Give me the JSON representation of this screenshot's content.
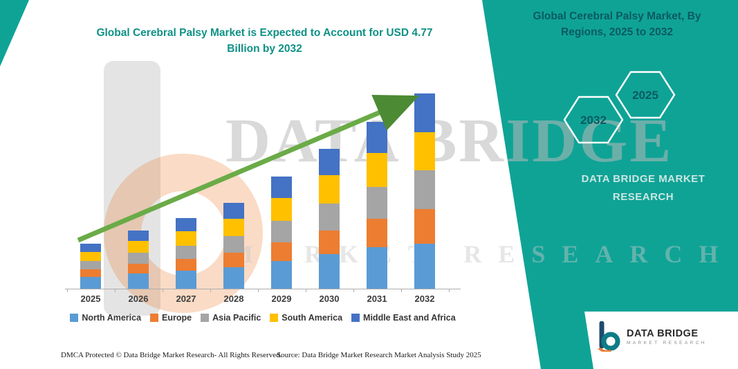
{
  "header": {
    "left_title_lines": [
      "Global Cerebral Palsy Market is Expected to Account for USD 4.77",
      "Billion by 2032"
    ],
    "right_title_lines": [
      "Global Cerebral Palsy Market, By",
      "Regions, 2025 to 2032"
    ]
  },
  "side_panel": {
    "hex_back_year": "2032",
    "hex_front_year": "2025",
    "brand_lines": [
      "DATA BRIDGE MARKET",
      "RESEARCH"
    ]
  },
  "watermark": {
    "line1": "DATA BRIDGE",
    "line2": "MARKET RESEARCH"
  },
  "chart_data": {
    "type": "bar",
    "stacked": true,
    "title": "Global Cerebral Palsy Market is Expected to Account for USD 4.77 Billion by 2032",
    "unit": "USD Billion",
    "categories": [
      "2025",
      "2026",
      "2027",
      "2028",
      "2029",
      "2030",
      "2031",
      "2032"
    ],
    "series": [
      {
        "name": "North America",
        "color": "#5B9BD5",
        "values": [
          0.29,
          0.37,
          0.44,
          0.52,
          0.68,
          0.85,
          1.01,
          1.1
        ]
      },
      {
        "name": "Europe",
        "color": "#ED7D31",
        "values": [
          0.19,
          0.24,
          0.29,
          0.36,
          0.46,
          0.57,
          0.69,
          0.85
        ]
      },
      {
        "name": "Asia Pacific",
        "color": "#A5A5A5",
        "values": [
          0.2,
          0.27,
          0.32,
          0.41,
          0.52,
          0.66,
          0.78,
          0.95
        ]
      },
      {
        "name": "South America",
        "color": "#FFC000",
        "values": [
          0.22,
          0.29,
          0.35,
          0.42,
          0.56,
          0.69,
          0.83,
          0.92
        ]
      },
      {
        "name": "Middle East and Africa",
        "color": "#4472C4",
        "values": [
          0.2,
          0.25,
          0.32,
          0.39,
          0.52,
          0.64,
          0.76,
          0.95
        ]
      }
    ],
    "totals": [
      1.1,
      1.42,
      1.72,
      2.1,
      2.74,
      3.41,
      4.07,
      4.77
    ],
    "ylim": [
      0,
      4.77
    ],
    "grid": false,
    "legend_position": "bottom",
    "trend_arrow": true
  },
  "footer": {
    "dmca": "DMCA Protected © Data Bridge Market Research-  All Rights Reserved.",
    "source": "Source: Data Bridge Market Research  Market Analysis Study 2025"
  },
  "logo": {
    "name": "DATA BRIDGE",
    "subtitle": "MARKET RESEARCH"
  },
  "colors": {
    "brand_teal": "#0FA396",
    "left_title_teal": "#0E9186",
    "dark_teal": "#0A5A60",
    "arrow_green": "#6AAB47"
  }
}
